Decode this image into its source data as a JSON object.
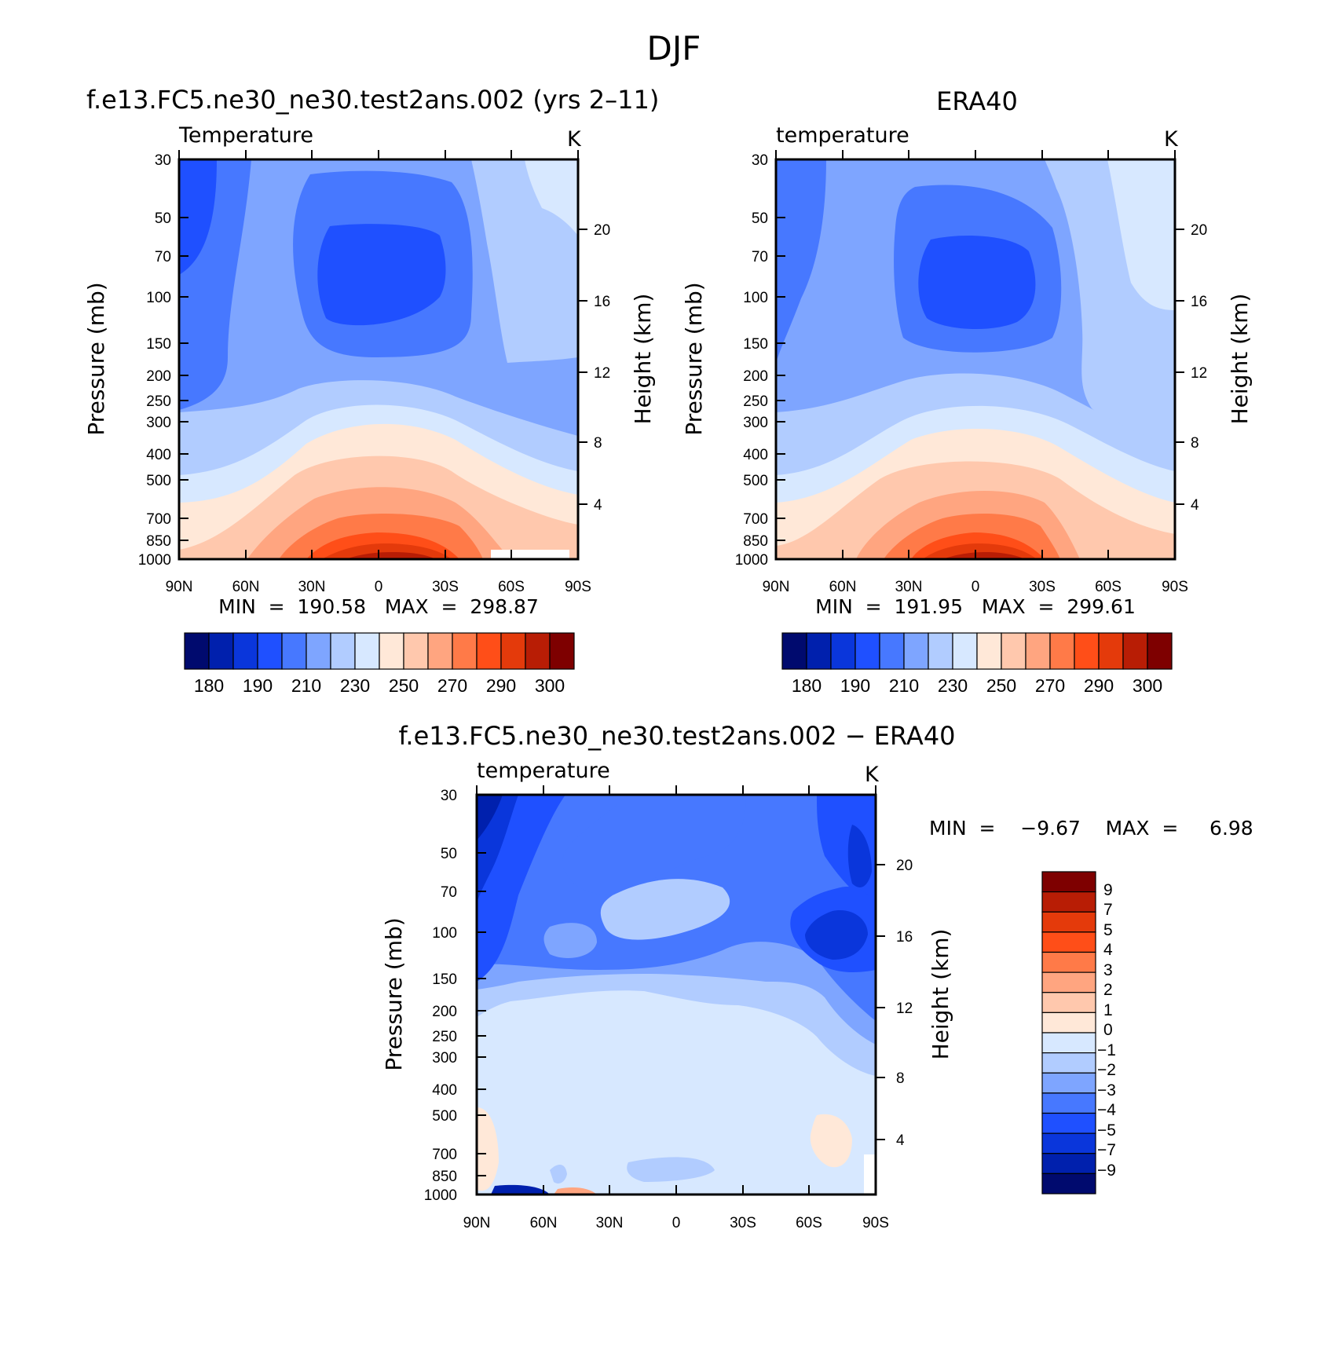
{
  "figure_title": "DJF",
  "chart_data": [
    {
      "type": "heatmap",
      "title": "f.e13.FC5.ne30_ne30.test2ans.002 (yrs 2–11)",
      "variable": "Temperature",
      "units": "K",
      "xlabel": "",
      "ylabel": "Pressure (mb)",
      "y2label": "Height (km)",
      "x_ticks": [
        "90N",
        "60N",
        "30N",
        "0",
        "30S",
        "60S",
        "90S"
      ],
      "y_ticks": [
        30,
        50,
        70,
        100,
        150,
        200,
        250,
        300,
        400,
        500,
        700,
        850,
        1000
      ],
      "y2_ticks": [
        20,
        16,
        12,
        8,
        4
      ],
      "ylim": [
        1000,
        30
      ],
      "min_max_text": "MIN  =  190.58   MAX  =  298.87",
      "colorbar_ticks": [
        "180",
        "190",
        "210",
        "230",
        "250",
        "270",
        "290",
        "300"
      ],
      "contour_levels": [
        180,
        185,
        190,
        200,
        210,
        220,
        230,
        240,
        250,
        260,
        270,
        280,
        290,
        295,
        300
      ],
      "min": 190.58,
      "max": 298.87
    },
    {
      "type": "heatmap",
      "title": "ERA40",
      "variable": "temperature",
      "units": "K",
      "xlabel": "",
      "ylabel": "Pressure (mb)",
      "y2label": "Height (km)",
      "x_ticks": [
        "90N",
        "60N",
        "30N",
        "0",
        "30S",
        "60S",
        "90S"
      ],
      "y_ticks": [
        30,
        50,
        70,
        100,
        150,
        200,
        250,
        300,
        400,
        500,
        700,
        850,
        1000
      ],
      "y2_ticks": [
        20,
        16,
        12,
        8,
        4
      ],
      "ylim": [
        1000,
        30
      ],
      "min_max_text": "MIN  =  191.95   MAX  =  299.61",
      "colorbar_ticks": [
        "180",
        "190",
        "210",
        "230",
        "250",
        "270",
        "290",
        "300"
      ],
      "contour_levels": [
        180,
        185,
        190,
        200,
        210,
        220,
        230,
        240,
        250,
        260,
        270,
        280,
        290,
        295,
        300
      ],
      "min": 191.95,
      "max": 299.61
    },
    {
      "type": "heatmap",
      "title": "f.e13.FC5.ne30_ne30.test2ans.002 − ERA40",
      "variable": "temperature",
      "units": "K",
      "xlabel": "",
      "ylabel": "Pressure (mb)",
      "y2label": "Height (km)",
      "x_ticks": [
        "90N",
        "60N",
        "30N",
        "0",
        "30S",
        "60S",
        "90S"
      ],
      "y_ticks": [
        30,
        50,
        70,
        100,
        150,
        200,
        250,
        300,
        400,
        500,
        700,
        850,
        1000
      ],
      "y2_ticks": [
        20,
        16,
        12,
        8,
        4
      ],
      "ylim": [
        1000,
        30
      ],
      "min_max_text": "MIN  =    −9.67    MAX  =     6.98",
      "colorbar_ticks": [
        "9",
        "7",
        "5",
        "4",
        "3",
        "2",
        "1",
        "0",
        "−1",
        "−2",
        "−3",
        "−4",
        "−5",
        "−7",
        "−9"
      ],
      "contour_levels": [
        -9,
        -7,
        -5,
        -4,
        -3,
        -2,
        -1,
        0,
        1,
        2,
        3,
        4,
        5,
        7,
        9
      ],
      "min": -9.67,
      "max": 6.98
    }
  ],
  "colors": {
    "temp_scale": [
      "#000a6e",
      "#0020ad",
      "#0a36db",
      "#1f50ff",
      "#4778ff",
      "#7ea5ff",
      "#b1ccff",
      "#d7e8ff",
      "#ffe8d8",
      "#ffc8ad",
      "#ffa580",
      "#ff7a48",
      "#ff4e18",
      "#e43a0b",
      "#b81d05",
      "#7e0000"
    ],
    "diff_scale": [
      "#7e0000",
      "#b81d05",
      "#e43a0b",
      "#ff4e18",
      "#ff7a48",
      "#ffa580",
      "#ffc8ad",
      "#ffe8d8",
      "#d7e8ff",
      "#b1ccff",
      "#7ea5ff",
      "#4778ff",
      "#1f50ff",
      "#0a36db",
      "#0020ad",
      "#000a6e"
    ]
  }
}
